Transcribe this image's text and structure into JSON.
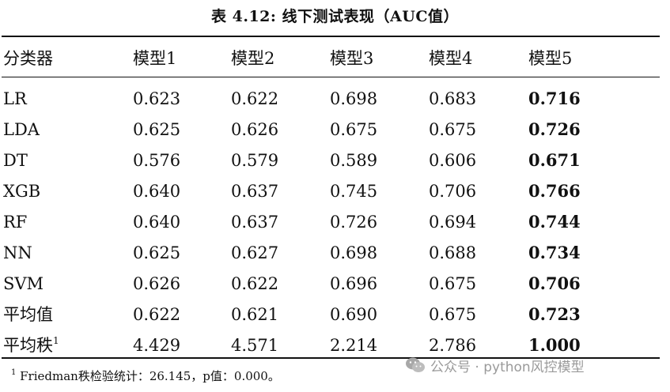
{
  "table": {
    "caption": "表 4.12: 线下测试表现（AUC值）",
    "headers": [
      "分类器",
      "模型1",
      "模型2",
      "模型3",
      "模型4",
      "模型5"
    ],
    "rows": [
      {
        "label": "LR",
        "sup": "",
        "values": [
          "0.623",
          "0.622",
          "0.698",
          "0.683",
          "0.716"
        ]
      },
      {
        "label": "LDA",
        "sup": "",
        "values": [
          "0.625",
          "0.626",
          "0.675",
          "0.675",
          "0.726"
        ]
      },
      {
        "label": "DT",
        "sup": "",
        "values": [
          "0.576",
          "0.579",
          "0.589",
          "0.606",
          "0.671"
        ]
      },
      {
        "label": "XGB",
        "sup": "",
        "values": [
          "0.640",
          "0.637",
          "0.745",
          "0.706",
          "0.766"
        ]
      },
      {
        "label": "RF",
        "sup": "",
        "values": [
          "0.640",
          "0.637",
          "0.726",
          "0.694",
          "0.744"
        ]
      },
      {
        "label": "NN",
        "sup": "",
        "values": [
          "0.625",
          "0.627",
          "0.698",
          "0.688",
          "0.734"
        ]
      },
      {
        "label": "SVM",
        "sup": "",
        "values": [
          "0.626",
          "0.622",
          "0.696",
          "0.675",
          "0.706"
        ]
      },
      {
        "label": "平均值",
        "sup": "",
        "values": [
          "0.622",
          "0.621",
          "0.690",
          "0.675",
          "0.723"
        ]
      },
      {
        "label": "平均秩",
        "sup": "1",
        "values": [
          "4.429",
          "4.571",
          "2.214",
          "2.786",
          "1.000"
        ]
      }
    ],
    "bold_column_index": 4
  },
  "footnote": {
    "marker": "1",
    "text": " Friedman秩检验统计：26.145，p值：0.000。"
  },
  "watermark": {
    "icon": "wechat-icon",
    "text": "公众号 · python风控模型",
    "color": "#9a9a9a"
  }
}
